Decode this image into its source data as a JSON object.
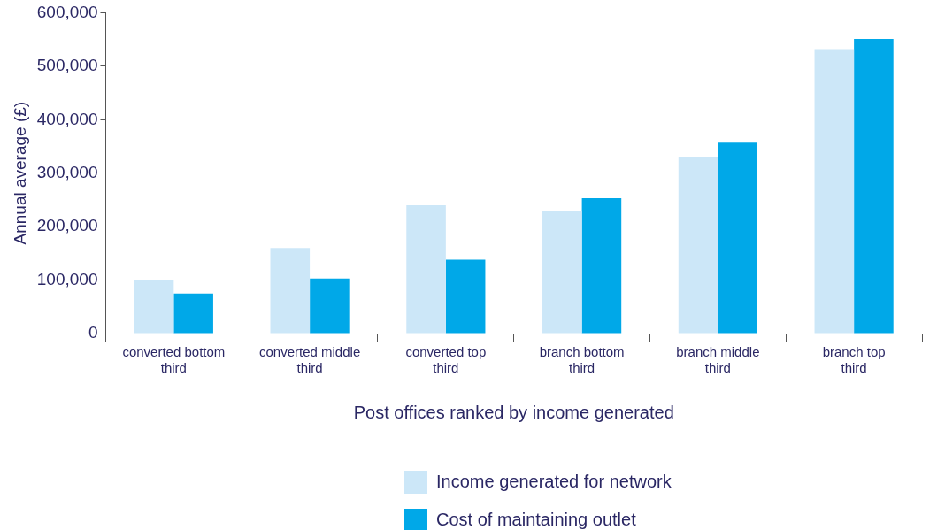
{
  "chart_data": {
    "type": "bar",
    "xlabel": "Post offices ranked by income generated",
    "ylabel": "Annual average (£)",
    "categories": [
      "converted bottom third",
      "converted middle third",
      "converted top third",
      "branch bottom third",
      "branch middle third",
      "branch top third"
    ],
    "series": [
      {
        "name": "Income generated for network",
        "color": "#cce7f8",
        "values": [
          101000,
          160000,
          240000,
          230000,
          331000,
          532000
        ]
      },
      {
        "name": "Cost of maintaining outlet",
        "color": "#00a8e8",
        "values": [
          75000,
          103000,
          138000,
          253000,
          357000,
          551000
        ]
      }
    ],
    "ylim": [
      0,
      600000
    ],
    "yticks": [
      0,
      {
        "value": 100000,
        "label": "100,000"
      },
      {
        "value": 200000,
        "label": "200,000"
      },
      {
        "value": 300000,
        "label": "300,000"
      },
      {
        "value": 400000,
        "label": "400,000"
      },
      {
        "value": 500000,
        "label": "500,000"
      },
      {
        "value": 600000,
        "label": "600,000"
      }
    ],
    "grid": false,
    "legend": "bottom"
  }
}
